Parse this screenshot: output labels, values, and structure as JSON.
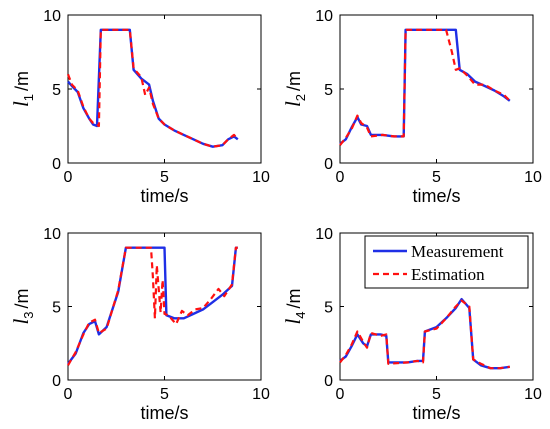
{
  "figure": {
    "colors": {
      "measurement": "#1f2fe6",
      "estimation": "#ff1010"
    },
    "legend": {
      "location": "top-right",
      "measurement_label": "Measurement",
      "estimation_label": "Estimation"
    }
  },
  "chart_data": [
    {
      "type": "line",
      "xlabel": "time/s",
      "ylabel": {
        "var": "l",
        "sub": "1",
        "unit": "/m"
      },
      "xlim": [
        0,
        10
      ],
      "ylim": [
        0,
        10
      ],
      "xticks": [
        "0",
        "5",
        "10"
      ],
      "yticks": [
        "0",
        "5",
        "10"
      ],
      "series": [
        {
          "name": "Measurement",
          "x": [
            0,
            0.2,
            0.5,
            0.8,
            1.1,
            1.3,
            1.5,
            1.7,
            2.2,
            3.2,
            3.4,
            3.8,
            4.2,
            4.4,
            4.7,
            5.0,
            5.5,
            6.0,
            6.5,
            7.0,
            7.5,
            8.0,
            8.3,
            8.6,
            8.8
          ],
          "y": [
            5.5,
            5.2,
            4.8,
            3.7,
            3.0,
            2.6,
            2.5,
            9.0,
            9.0,
            9.0,
            6.3,
            5.7,
            5.3,
            4.2,
            3.0,
            2.6,
            2.2,
            1.9,
            1.6,
            1.3,
            1.1,
            1.2,
            1.6,
            1.8,
            1.6
          ]
        },
        {
          "name": "Estimation",
          "x": [
            0,
            0.2,
            0.5,
            0.8,
            1.1,
            1.3,
            1.5,
            1.6,
            1.7,
            2.2,
            3.2,
            3.4,
            3.8,
            4.0,
            4.2,
            4.4,
            4.7,
            5.0,
            5.5,
            6.0,
            6.5,
            7.0,
            7.5,
            8.0,
            8.3,
            8.6,
            8.8
          ],
          "y": [
            6.0,
            5.3,
            4.9,
            3.8,
            3.0,
            2.7,
            2.6,
            2.5,
            9.0,
            9.0,
            9.0,
            6.4,
            5.8,
            4.6,
            5.1,
            4.0,
            3.0,
            2.6,
            2.2,
            1.9,
            1.6,
            1.3,
            1.1,
            1.2,
            1.6,
            1.9,
            1.6
          ]
        }
      ]
    },
    {
      "type": "line",
      "xlabel": "time/s",
      "ylabel": {
        "var": "l",
        "sub": "2",
        "unit": "/m"
      },
      "xlim": [
        0,
        10
      ],
      "ylim": [
        0,
        10
      ],
      "xticks": [
        "0",
        "5",
        "10"
      ],
      "yticks": [
        "0",
        "5",
        "10"
      ],
      "series": [
        {
          "name": "Measurement",
          "x": [
            0,
            0.3,
            0.6,
            0.9,
            1.1,
            1.4,
            1.6,
            2.2,
            2.8,
            3.3,
            3.4,
            4.5,
            5.5,
            6.0,
            6.2,
            6.6,
            7.0,
            7.5,
            8.0,
            8.5,
            8.8
          ],
          "y": [
            1.3,
            1.6,
            2.4,
            3.1,
            2.6,
            2.5,
            1.9,
            1.9,
            1.8,
            1.8,
            9.0,
            9.0,
            9.0,
            9.0,
            6.3,
            6.0,
            5.5,
            5.2,
            4.9,
            4.5,
            4.2
          ]
        },
        {
          "name": "Estimation",
          "x": [
            0,
            0.3,
            0.6,
            0.9,
            1.1,
            1.4,
            1.6,
            2.2,
            2.8,
            3.3,
            3.4,
            4.5,
            5.5,
            5.8,
            6.0,
            6.2,
            6.6,
            7.0,
            7.5,
            8.0,
            8.5,
            8.8
          ],
          "y": [
            1.2,
            1.7,
            2.3,
            3.2,
            2.7,
            2.4,
            1.8,
            1.9,
            1.8,
            1.8,
            9.0,
            9.0,
            9.0,
            7.5,
            6.3,
            6.4,
            5.9,
            5.3,
            5.3,
            4.9,
            4.6,
            4.2
          ]
        }
      ]
    },
    {
      "type": "line",
      "xlabel": "time/s",
      "ylabel": {
        "var": "l",
        "sub": "3",
        "unit": "/m"
      },
      "xlim": [
        0,
        10
      ],
      "ylim": [
        0,
        10
      ],
      "xticks": [
        "0",
        "5",
        "10"
      ],
      "yticks": [
        "0",
        "5",
        "10"
      ],
      "series": [
        {
          "name": "Measurement",
          "x": [
            0,
            0.4,
            0.8,
            1.1,
            1.4,
            1.6,
            2.0,
            2.6,
            3.0,
            4.0,
            5.0,
            5.1,
            5.5,
            6.0,
            6.5,
            7.0,
            7.5,
            8.0,
            8.5,
            8.7,
            8.8
          ],
          "y": [
            1.1,
            1.8,
            3.2,
            3.8,
            4.0,
            3.1,
            3.6,
            6.0,
            9.0,
            9.0,
            9.0,
            4.4,
            4.2,
            4.2,
            4.5,
            4.8,
            5.3,
            5.8,
            6.4,
            9.0,
            9.0
          ]
        },
        {
          "name": "Estimation",
          "x": [
            0,
            0.4,
            0.8,
            1.1,
            1.4,
            1.6,
            2.0,
            2.6,
            3.0,
            4.0,
            4.3,
            4.4,
            4.5,
            4.6,
            4.8,
            4.9,
            5.0,
            5.2,
            5.6,
            5.9,
            6.2,
            6.6,
            7.0,
            7.4,
            7.8,
            8.1,
            8.5,
            8.7,
            8.8
          ],
          "y": [
            1.0,
            1.9,
            3.1,
            3.9,
            4.1,
            3.2,
            3.5,
            6.1,
            9.0,
            9.0,
            9.0,
            7.0,
            4.2,
            7.8,
            4.6,
            6.8,
            4.5,
            4.4,
            3.8,
            4.7,
            4.4,
            4.8,
            4.9,
            5.5,
            6.2,
            5.7,
            6.5,
            9.0,
            9.0
          ]
        }
      ]
    },
    {
      "type": "line",
      "xlabel": "time/s",
      "ylabel": {
        "var": "l",
        "sub": "4",
        "unit": "/m"
      },
      "xlim": [
        0,
        10
      ],
      "ylim": [
        0,
        10
      ],
      "xticks": [
        "0",
        "5",
        "10"
      ],
      "yticks": [
        "0",
        "5",
        "10"
      ],
      "series": [
        {
          "name": "Measurement",
          "x": [
            0,
            0.3,
            0.6,
            0.9,
            1.2,
            1.4,
            1.6,
            2.1,
            2.4,
            2.5,
            3.5,
            4.0,
            4.3,
            4.4,
            5.0,
            5.5,
            6.0,
            6.3,
            6.7,
            6.9,
            7.3,
            7.8,
            8.3,
            8.8
          ],
          "y": [
            1.3,
            1.6,
            2.3,
            3.1,
            2.5,
            2.3,
            3.1,
            3.1,
            3.0,
            1.2,
            1.2,
            1.3,
            1.3,
            3.3,
            3.6,
            4.2,
            4.9,
            5.5,
            4.9,
            1.4,
            1.0,
            0.8,
            0.8,
            0.9
          ]
        },
        {
          "name": "Estimation",
          "x": [
            0,
            0.3,
            0.6,
            0.9,
            1.2,
            1.4,
            1.6,
            2.1,
            2.4,
            2.5,
            3.5,
            4.0,
            4.3,
            4.4,
            5.0,
            5.5,
            6.0,
            6.3,
            6.7,
            6.9,
            7.3,
            7.8,
            8.3,
            8.8
          ],
          "y": [
            1.2,
            1.7,
            2.4,
            3.3,
            2.6,
            2.2,
            3.2,
            3.0,
            3.1,
            1.1,
            1.2,
            1.3,
            1.2,
            3.3,
            3.5,
            4.2,
            5.0,
            5.4,
            5.0,
            1.4,
            1.1,
            0.8,
            0.8,
            0.9
          ]
        }
      ]
    }
  ]
}
